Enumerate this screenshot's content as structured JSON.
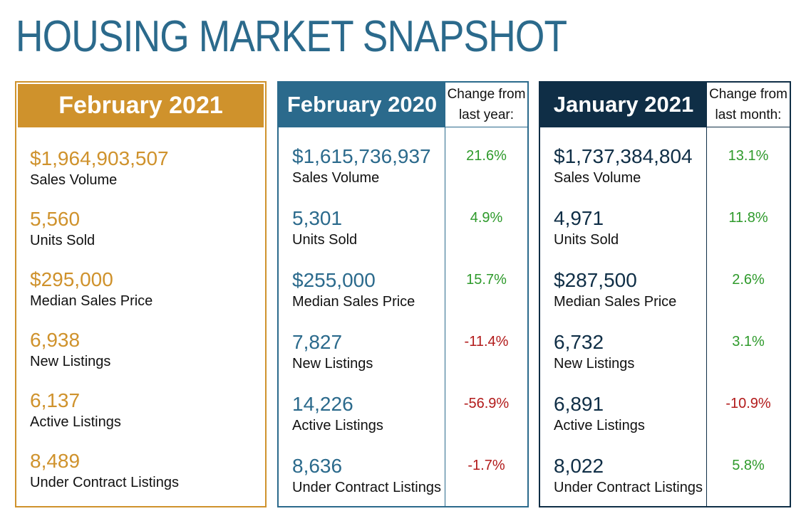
{
  "title": "HOUSING MARKET SNAPSHOT",
  "colors": {
    "gold": "#cf922c",
    "blue": "#2b6a8c",
    "navy": "#0f2e46",
    "positive": "#2e9a2b",
    "negative": "#b21a1a"
  },
  "current": {
    "heading": "February 2021",
    "metrics": [
      {
        "value": "$1,964,903,507",
        "label": "Sales Volume"
      },
      {
        "value": "5,560",
        "label": "Units Sold"
      },
      {
        "value": "$295,000",
        "label": "Median Sales Price"
      },
      {
        "value": "6,938",
        "label": "New Listings"
      },
      {
        "value": "6,137",
        "label": "Active Listings"
      },
      {
        "value": "8,489",
        "label": "Under Contract Listings"
      }
    ]
  },
  "last_year": {
    "heading": "February 2020",
    "change_heading_1": "Change from",
    "change_heading_2": "last year:",
    "metrics": [
      {
        "value": "$1,615,736,937",
        "label": "Sales Volume",
        "change": "21.6%"
      },
      {
        "value": "5,301",
        "label": "Units Sold",
        "change": "4.9%"
      },
      {
        "value": "$255,000",
        "label": "Median Sales Price",
        "change": "15.7%"
      },
      {
        "value": "7,827",
        "label": "New Listings",
        "change": "-11.4%"
      },
      {
        "value": "14,226",
        "label": "Active Listings",
        "change": "-56.9%"
      },
      {
        "value": "8,636",
        "label": "Under Contract Listings",
        "change": "-1.7%"
      }
    ]
  },
  "last_month": {
    "heading": "January 2021",
    "change_heading_1": "Change from",
    "change_heading_2": "last month:",
    "metrics": [
      {
        "value": "$1,737,384,804",
        "label": "Sales Volume",
        "change": "13.1%"
      },
      {
        "value": "4,971",
        "label": "Units Sold",
        "change": "11.8%"
      },
      {
        "value": "$287,500",
        "label": "Median Sales Price",
        "change": "2.6%"
      },
      {
        "value": "6,732",
        "label": "New Listings",
        "change": "3.1%"
      },
      {
        "value": "6,891",
        "label": "Active Listings",
        "change": "-10.9%"
      },
      {
        "value": "8,022",
        "label": "Under Contract Listings",
        "change": "5.8%"
      }
    ]
  }
}
